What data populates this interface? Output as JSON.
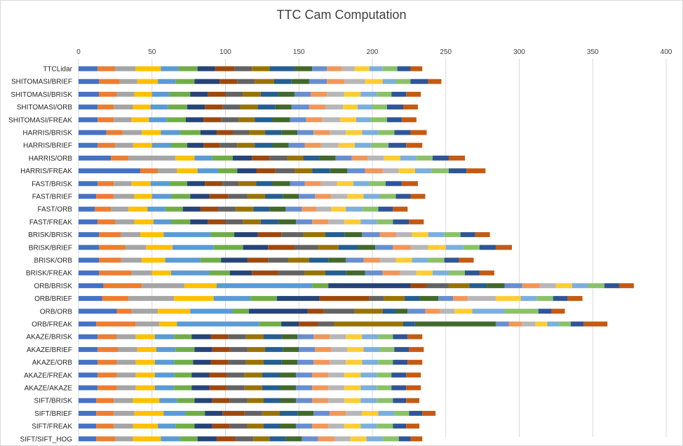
{
  "chart_data": {
    "type": "bar",
    "orientation": "horizontal",
    "stacked": true,
    "title": "TTC Cam Computation",
    "xlim": [
      0,
      400
    ],
    "xticks": [
      0,
      50,
      100,
      150,
      200,
      250,
      300,
      350,
      400
    ],
    "x_axis_position": "top",
    "grid": true,
    "legend": "none",
    "segment_colors": [
      "#4472c4",
      "#ed7d31",
      "#a5a5a5",
      "#ffc000",
      "#5b9bd5",
      "#70ad47",
      "#264478",
      "#9e480e",
      "#636363",
      "#997300",
      "#255e91",
      "#43682b",
      "#698ed0",
      "#f1975a",
      "#b7b7b7",
      "#ffcd33",
      "#7cafdd",
      "#8cc168",
      "#2f5597",
      "#c55a11"
    ],
    "categories": [
      "TTCLidar",
      "SHITOMASI/BRIEF",
      "SHITOMASI/BRISK",
      "SHITOMASI/ORB",
      "SHITOMASI/FREAK",
      "HARRIS/BRISK",
      "HARRIS/BRIEF",
      "HARRIS/ORB",
      "HARRIS/FREAK",
      "FAST/BRISK",
      "FAST/BRIEF",
      "FAST/ORB",
      "FAST/FREAK",
      "BRISK/BRISK",
      "BRISK/BRIEF",
      "BRISK/ORB",
      "BRISK/FREAK",
      "ORB/BRISK",
      "ORB/BRIEF",
      "ORB/ORB",
      "ORB/FREAK",
      "AKAZE/BRISK",
      "AKAZE/BRIEF",
      "AKAZE/ORB",
      "AKAZE/FREAK",
      "AKAZE/AKAZE",
      "SIFT/BRISK",
      "SIFT/BRIEF",
      "SIFT/FREAK",
      "SIFT/SIFT_HOG"
    ],
    "series_values": [
      [
        13,
        12,
        14,
        17,
        12,
        13,
        12,
        13,
        12,
        12,
        17,
        12,
        10,
        10,
        9,
        10,
        9,
        10,
        9,
        8
      ],
      [
        14,
        14,
        12,
        14,
        12,
        13,
        17,
        12,
        12,
        13,
        12,
        12,
        12,
        12,
        14,
        12,
        9,
        10,
        12,
        9
      ],
      [
        14,
        12,
        12,
        12,
        12,
        14,
        12,
        12,
        12,
        12,
        12,
        11,
        11,
        11,
        12,
        11,
        11,
        10,
        10,
        10
      ],
      [
        13,
        11,
        13,
        12,
        12,
        13,
        12,
        12,
        12,
        12,
        12,
        11,
        12,
        11,
        12,
        10,
        10,
        10,
        11,
        10
      ],
      [
        13,
        11,
        12,
        12,
        12,
        13,
        12,
        12,
        12,
        11,
        12,
        12,
        11,
        11,
        12,
        11,
        10,
        11,
        10,
        10
      ],
      [
        19,
        11,
        13,
        13,
        13,
        14,
        11,
        11,
        11,
        11,
        11,
        11,
        11,
        11,
        11,
        11,
        11,
        11,
        11,
        11
      ],
      [
        13,
        12,
        12,
        13,
        13,
        11,
        11,
        11,
        12,
        12,
        12,
        11,
        11,
        11,
        12,
        11,
        11,
        12,
        12,
        11
      ],
      [
        22,
        12,
        32,
        13,
        12,
        14,
        13,
        12,
        12,
        11,
        11,
        11,
        11,
        11,
        11,
        11,
        11,
        11,
        11,
        11
      ],
      [
        42,
        12,
        13,
        14,
        14,
        13,
        13,
        13,
        13,
        12,
        12,
        12,
        12,
        12,
        11,
        11,
        11,
        12,
        12,
        13
      ],
      [
        13,
        11,
        12,
        13,
        13,
        12,
        12,
        12,
        11,
        12,
        11,
        12,
        10,
        11,
        11,
        11,
        11,
        11,
        11,
        11
      ],
      [
        12,
        12,
        14,
        12,
        13,
        13,
        13,
        13,
        13,
        12,
        12,
        11,
        11,
        11,
        11,
        11,
        11,
        11,
        10,
        10
      ],
      [
        11,
        11,
        12,
        13,
        12,
        12,
        12,
        12,
        12,
        12,
        11,
        11,
        11,
        10,
        10,
        10,
        11,
        11,
        10,
        10
      ],
      [
        13,
        12,
        13,
        13,
        12,
        13,
        12,
        12,
        12,
        12,
        12,
        12,
        11,
        11,
        11,
        11,
        11,
        11,
        11,
        10
      ],
      [
        14,
        15,
        13,
        16,
        32,
        16,
        16,
        16,
        15,
        15,
        13,
        12,
        12,
        11,
        11,
        11,
        11,
        11,
        10,
        10
      ],
      [
        14,
        18,
        14,
        18,
        28,
        20,
        17,
        18,
        16,
        14,
        13,
        12,
        12,
        12,
        12,
        12,
        12,
        11,
        11,
        11
      ],
      [
        14,
        15,
        14,
        16,
        24,
        14,
        18,
        14,
        14,
        14,
        13,
        12,
        12,
        11,
        11,
        11,
        11,
        11,
        10,
        10
      ],
      [
        14,
        22,
        14,
        13,
        26,
        14,
        15,
        18,
        18,
        14,
        14,
        13,
        12,
        12,
        11,
        11,
        11,
        11,
        10,
        10
      ],
      [
        17,
        26,
        29,
        22,
        65,
        11,
        56,
        11,
        15,
        14,
        12,
        12,
        12,
        12,
        11,
        11,
        11,
        11,
        10,
        10
      ],
      [
        16,
        18,
        31,
        27,
        25,
        18,
        29,
        34,
        10,
        14,
        10,
        13,
        10,
        10,
        19,
        17,
        11,
        11,
        10,
        10
      ],
      [
        26,
        10,
        18,
        22,
        29,
        11,
        40,
        11,
        21,
        19,
        9,
        8,
        12,
        10,
        10,
        12,
        22,
        23,
        9,
        9
      ],
      [
        12,
        27,
        16,
        12,
        56,
        15,
        12,
        13,
        11,
        47,
        8,
        55,
        9,
        9,
        9,
        8,
        8,
        8,
        9,
        16
      ],
      [
        13,
        13,
        13,
        13,
        13,
        12,
        13,
        12,
        12,
        12,
        12,
        11,
        11,
        11,
        11,
        11,
        11,
        10,
        10,
        10
      ],
      [
        13,
        14,
        13,
        13,
        13,
        13,
        12,
        12,
        12,
        12,
        12,
        11,
        11,
        11,
        11,
        11,
        11,
        10,
        10,
        10
      ],
      [
        13,
        13,
        13,
        13,
        13,
        13,
        12,
        12,
        12,
        12,
        12,
        11,
        11,
        11,
        11,
        11,
        11,
        10,
        10,
        10
      ],
      [
        13,
        13,
        13,
        13,
        13,
        12,
        12,
        12,
        12,
        12,
        12,
        11,
        11,
        11,
        11,
        11,
        11,
        10,
        10,
        10
      ],
      [
        13,
        13,
        13,
        13,
        13,
        12,
        12,
        12,
        12,
        12,
        12,
        11,
        11,
        11,
        11,
        11,
        11,
        10,
        10,
        10
      ],
      [
        12,
        12,
        13,
        18,
        12,
        12,
        12,
        12,
        12,
        11,
        11,
        11,
        11,
        11,
        11,
        11,
        11,
        11,
        9,
        9
      ],
      [
        12,
        12,
        14,
        20,
        15,
        13,
        12,
        15,
        12,
        12,
        12,
        11,
        11,
        11,
        11,
        11,
        11,
        10,
        9,
        9
      ],
      [
        12,
        12,
        13,
        17,
        12,
        13,
        12,
        12,
        12,
        11,
        11,
        11,
        11,
        11,
        11,
        11,
        11,
        11,
        9,
        9
      ],
      [
        12,
        13,
        12,
        19,
        13,
        12,
        13,
        13,
        12,
        11,
        11,
        11,
        11,
        11,
        11,
        11,
        11,
        11,
        8,
        8
      ]
    ]
  }
}
